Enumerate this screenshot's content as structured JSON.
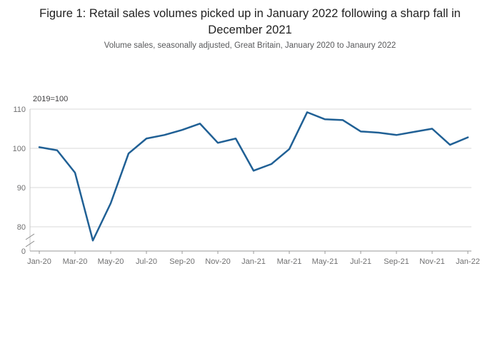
{
  "header": {
    "title": "Figure 1: Retail sales volumes picked up in January 2022 following a sharp fall in December 2021",
    "subtitle": "Volume sales, seasonally adjusted, Great Britain, January 2020 to Janaury 2022"
  },
  "chart_data": {
    "type": "line",
    "title": "Figure 1: Retail sales volumes picked up in January 2022 following a sharp fall in December 2021",
    "subtitle": "Volume sales, seasonally adjusted, Great Britain, January 2020 to Janaury 2022",
    "unit_label": "2019=100",
    "x": [
      "Jan-20",
      "Feb-20",
      "Mar-20",
      "Apr-20",
      "May-20",
      "Jun-20",
      "Jul-20",
      "Aug-20",
      "Sep-20",
      "Oct-20",
      "Nov-20",
      "Dec-20",
      "Jan-21",
      "Feb-21",
      "Mar-21",
      "Apr-21",
      "May-21",
      "Jun-21",
      "Jul-21",
      "Aug-21",
      "Sep-21",
      "Oct-21",
      "Nov-21",
      "Dec-21",
      "Jan-22"
    ],
    "series": [
      {
        "name": "Retail sales volume index, seasonally adjusted",
        "values": [
          100.3,
          99.5,
          93.8,
          76.5,
          86.0,
          98.7,
          102.5,
          103.4,
          104.7,
          106.3,
          101.4,
          102.5,
          94.3,
          96.0,
          99.8,
          109.2,
          107.4,
          107.2,
          104.3,
          104.0,
          103.4,
          104.2,
          105.0,
          100.9,
          102.8
        ]
      }
    ],
    "xlabel": "",
    "ylabel": "2019=100",
    "y_ticks": [
      0,
      80,
      90,
      100,
      110
    ],
    "x_tick_labels": [
      "Jan-20",
      "Mar-20",
      "May-20",
      "Jul-20",
      "Sep-20",
      "Nov-20",
      "Jan-21",
      "Mar-21",
      "May-21",
      "Jul-21",
      "Sep-21",
      "Nov-21",
      "Jan-22"
    ],
    "ylim_main": [
      80,
      110
    ],
    "axis_break": true,
    "grid": "horizontal",
    "legend": "none",
    "line_color": "#206095",
    "grid_color": "#d9d9d9"
  }
}
